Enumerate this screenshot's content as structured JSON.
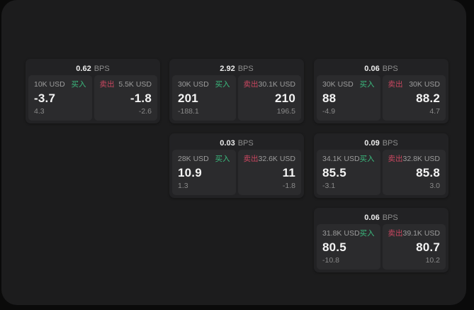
{
  "labels": {
    "bps_unit": "BPS",
    "buy": "买入",
    "sell": "卖出"
  },
  "colors": {
    "buy": "#3bbb7e",
    "sell": "#ca4760",
    "panel_background": "#1c1c1d",
    "card_background": "#222224",
    "tile_background": "#2b2b2d"
  },
  "cards": [
    {
      "bps": "0.62",
      "col": 0,
      "row": 0,
      "buy": {
        "amount": "10K USD",
        "value": "-3.7",
        "sub": "4.3"
      },
      "sell": {
        "amount": "5.5K USD",
        "value": "-1.8",
        "sub": "-2.6"
      }
    },
    {
      "bps": "2.92",
      "col": 1,
      "row": 0,
      "buy": {
        "amount": "30K USD",
        "value": "201",
        "sub": "-188.1"
      },
      "sell": {
        "amount": "30.1K USD",
        "value": "210",
        "sub": "196.5"
      }
    },
    {
      "bps": "0.06",
      "col": 2,
      "row": 0,
      "buy": {
        "amount": "30K USD",
        "value": "88",
        "sub": "-4.9"
      },
      "sell": {
        "amount": "30K USD",
        "value": "88.2",
        "sub": "4.7"
      }
    },
    {
      "bps": "0.03",
      "col": 1,
      "row": 1,
      "buy": {
        "amount": "28K USD",
        "value": "10.9",
        "sub": "1.3"
      },
      "sell": {
        "amount": "32.6K USD",
        "value": "11",
        "sub": "-1.8"
      }
    },
    {
      "bps": "0.09",
      "col": 2,
      "row": 1,
      "buy": {
        "amount": "34.1K USD",
        "value": "85.5",
        "sub": "-3.1"
      },
      "sell": {
        "amount": "32.8K USD",
        "value": "85.8",
        "sub": "3.0"
      }
    },
    {
      "bps": "0.06",
      "col": 2,
      "row": 2,
      "buy": {
        "amount": "31.8K USD",
        "value": "80.5",
        "sub": "-10.8"
      },
      "sell": {
        "amount": "39.1K USD",
        "value": "80.7",
        "sub": "10.2"
      }
    }
  ]
}
